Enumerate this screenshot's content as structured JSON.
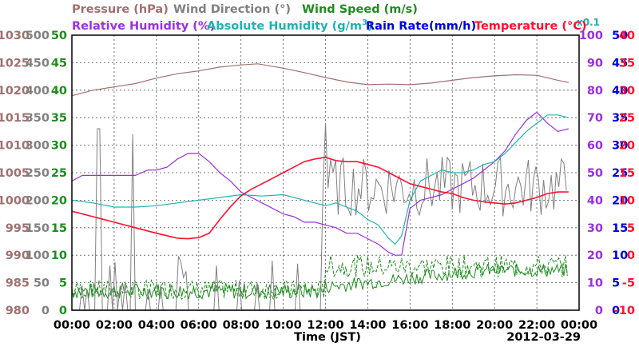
{
  "chart_data": {
    "type": "line",
    "xlabel": "Time (JST)",
    "date_label": "2012-03-29",
    "x_ticks": [
      "00:00",
      "02:00",
      "04:00",
      "06:00",
      "08:00",
      "10:00",
      "12:00",
      "14:00",
      "16:00",
      "18:00",
      "20:00",
      "22:00",
      "00:00"
    ],
    "grid": true,
    "legend": [
      {
        "label": "Pressure (hPa)",
        "color": "#a07070"
      },
      {
        "label": "Wind Direction (°)",
        "color": "#808080"
      },
      {
        "label": "Wind Speed (m/s)",
        "color": "#1e8c1e"
      },
      {
        "label": "Relative Humidity (%)",
        "color": "#9a30e0"
      },
      {
        "label": "Absolute Humidity (g/m",
        "sup": "3",
        "close": ")",
        "color": "#20b2b2",
        "scale_note": "x0.1"
      },
      {
        "label": "Rain Rate(mm/h)",
        "color": "#0000dd"
      },
      {
        "label": "Temperature (°C)",
        "color": "#ff1030"
      }
    ],
    "axes": {
      "pressure": {
        "ticks": [
          "980",
          "985",
          "990",
          "995",
          "1000",
          "1005",
          "1010",
          "1015",
          "1020",
          "1025",
          "1030"
        ],
        "range": [
          980,
          1030
        ],
        "color": "#a07070"
      },
      "wind_dir": {
        "ticks": [
          "0",
          "50",
          "100",
          "150",
          "200",
          "250",
          "300",
          "350",
          "400",
          "450",
          "500"
        ],
        "range": [
          0,
          500
        ],
        "color": "#808080"
      },
      "wind_speed": {
        "ticks": [
          "0",
          "5",
          "10",
          "15",
          "20",
          "25",
          "30",
          "35",
          "40",
          "45",
          "50"
        ],
        "range": [
          0,
          50
        ],
        "color": "#1e8c1e"
      },
      "humidity": {
        "ticks": [
          "0",
          "10",
          "20",
          "30",
          "40",
          "50",
          "60",
          "70",
          "80",
          "90",
          "100"
        ],
        "range": [
          0,
          100
        ],
        "color": "#9a30e0"
      },
      "rain": {
        "ticks": [
          "0",
          "5",
          "10",
          "15",
          "20",
          "25",
          "30",
          "35",
          "40",
          "45",
          "50"
        ],
        "range": [
          0,
          50
        ],
        "color": "#0000dd"
      },
      "temperature": {
        "ticks": [
          "-10",
          "-5",
          "0",
          "5",
          "10",
          "15",
          "20",
          "25",
          "30",
          "35",
          "40"
        ],
        "range": [
          -10,
          40
        ],
        "color": "#ff1030"
      }
    },
    "series": [
      {
        "name": "Pressure (hPa)",
        "color": "#a07070",
        "axis": "pressure",
        "x": [
          0,
          1,
          2,
          3,
          4,
          5,
          6,
          7,
          8,
          8.8,
          10,
          11,
          12,
          13,
          14,
          15,
          16,
          17,
          18,
          19,
          20,
          21,
          22,
          23,
          23.5
        ],
        "y": [
          1019,
          1020,
          1020.6,
          1021.2,
          1022.2,
          1023,
          1023.5,
          1024.2,
          1024.6,
          1024.8,
          1024,
          1023.2,
          1022.3,
          1021.5,
          1021,
          1021.1,
          1021,
          1021.3,
          1021.8,
          1022.3,
          1022.6,
          1022.8,
          1022.7,
          1021.8,
          1021.4
        ]
      },
      {
        "name": "Relative Humidity (%)",
        "color": "#9a30e0",
        "axis": "humidity",
        "x": [
          0,
          0.5,
          1,
          2,
          3,
          3.6,
          4,
          4.5,
          5,
          5.5,
          6,
          6.5,
          7,
          7.5,
          8,
          8.5,
          9,
          9.5,
          10,
          10.5,
          11,
          11.5,
          12,
          12.5,
          13,
          13.5,
          14,
          14.5,
          15,
          15.3,
          15.6,
          16,
          16.5,
          17,
          17.5,
          18,
          18.5,
          19,
          19.5,
          20,
          20.5,
          21,
          21.5,
          22,
          22.5,
          23,
          23.5
        ],
        "y": [
          47,
          49,
          49,
          49,
          49,
          51,
          51,
          52,
          55,
          57,
          57,
          54,
          50,
          47,
          43,
          41,
          39,
          37,
          35,
          34,
          32,
          32,
          31,
          30,
          28,
          28,
          26,
          24,
          21,
          20,
          20,
          37,
          40,
          41,
          42,
          44,
          46,
          48,
          51,
          54,
          58,
          64,
          69,
          72,
          68,
          65,
          66
        ]
      },
      {
        "name": "Absolute Humidity",
        "color": "#20b2b2",
        "axis": "humidity",
        "x": [
          0,
          1,
          2,
          3,
          4,
          5,
          6,
          7,
          8,
          9,
          10,
          11,
          12,
          12.5,
          13,
          13.5,
          14,
          14.5,
          15,
          15.3,
          15.6,
          16,
          16.5,
          17,
          17.5,
          18,
          18.5,
          19,
          19.5,
          20,
          20.5,
          21,
          21.5,
          22,
          22.5,
          23,
          23.5
        ],
        "y": [
          40,
          39,
          37.5,
          37.5,
          38,
          39,
          40,
          41,
          42,
          41.5,
          42,
          40,
          38,
          39,
          37.5,
          36,
          33,
          31,
          26,
          24,
          27,
          40,
          47,
          49,
          51,
          50,
          50,
          51,
          53,
          54,
          57,
          61,
          65,
          68,
          71,
          71,
          70
        ]
      },
      {
        "name": "Temperature (°C)",
        "color": "#ff1030",
        "axis": "temperature",
        "x": [
          0,
          1,
          2,
          3,
          4,
          5,
          5.5,
          6,
          6.5,
          7,
          7.5,
          8,
          8.5,
          9,
          9.5,
          10,
          10.5,
          11,
          11.5,
          12,
          12.5,
          13,
          13.5,
          14,
          14.5,
          15,
          15.5,
          16,
          16.5,
          17,
          17.5,
          18,
          18.5,
          19,
          19.5,
          20,
          20.5,
          21,
          21.5,
          22,
          22.5,
          23,
          23.5
        ],
        "y": [
          8,
          7,
          6,
          5,
          4,
          3.1,
          3,
          3.2,
          4,
          6.5,
          8.8,
          10.8,
          12,
          13,
          14,
          15,
          16,
          17,
          17.5,
          17.8,
          17.2,
          17,
          17,
          16.5,
          16,
          15,
          14,
          13,
          12.5,
          12,
          11.5,
          11.2,
          10.5,
          10,
          9.7,
          9.5,
          9.3,
          9.5,
          10,
          10.5,
          11.2,
          11.5,
          11.5
        ]
      },
      {
        "name": "Rain Rate(mm/h)",
        "color": "#0000dd",
        "axis": "rain",
        "x": [
          0,
          1,
          2,
          3,
          4,
          5,
          6,
          7,
          8,
          9,
          10,
          11,
          12,
          13,
          14,
          15,
          16,
          17,
          18,
          19,
          20,
          21,
          22,
          23,
          23.5
        ],
        "y": [
          0,
          0,
          0,
          0,
          0,
          0,
          0,
          0,
          0,
          0,
          0,
          0,
          0,
          0,
          0,
          0,
          0,
          0,
          0,
          0,
          0,
          0,
          0,
          0,
          0
        ]
      }
    ]
  }
}
